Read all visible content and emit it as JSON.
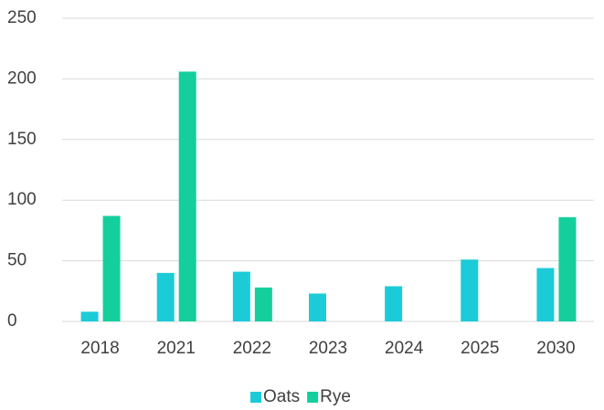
{
  "chart_data": {
    "type": "bar",
    "categories": [
      "2018",
      "2021",
      "2022",
      "2023",
      "2024",
      "2025",
      "2030"
    ],
    "series": [
      {
        "name": "Oats",
        "color": "#1ccbd8",
        "values": [
          8,
          40,
          41,
          23,
          29,
          51,
          44
        ]
      },
      {
        "name": "Rye",
        "color": "#14cf9c",
        "values": [
          87,
          206,
          28,
          null,
          null,
          null,
          86
        ]
      }
    ],
    "ylim": [
      0,
      250
    ],
    "yticks": [
      0,
      50,
      100,
      150,
      200,
      250
    ],
    "grid": true,
    "legend": "bottom"
  }
}
